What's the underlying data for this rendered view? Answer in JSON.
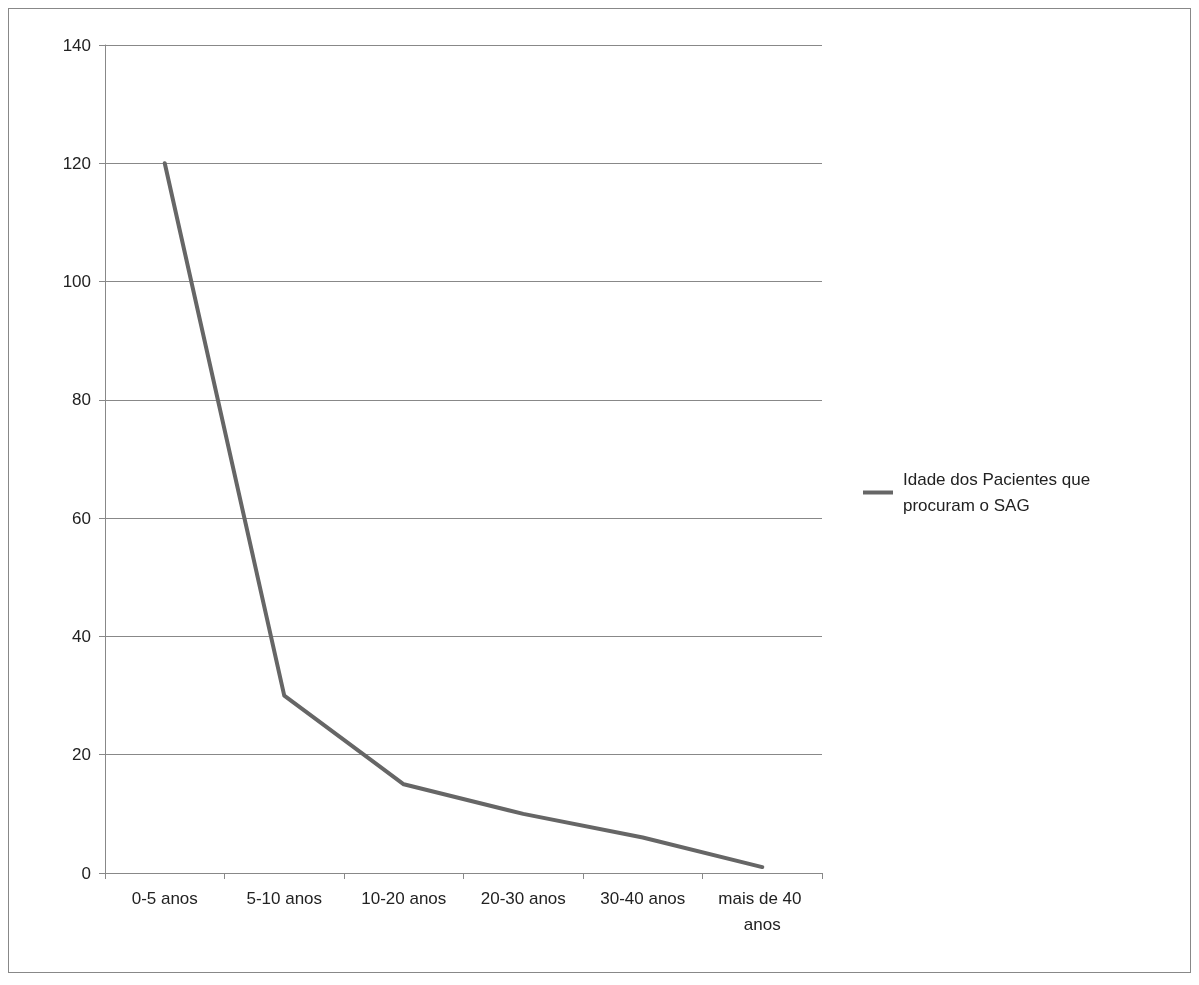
{
  "chart_data": {
    "type": "line",
    "categories": [
      "0-5 anos",
      "5-10 anos",
      "10-20 anos",
      "20-30 anos",
      "30-40 anos",
      "mais de 40 anos"
    ],
    "series": [
      {
        "name": "Idade dos Pacientes que procuram o SAG",
        "color": "#666666",
        "values": [
          120,
          30,
          15,
          10,
          6,
          1
        ]
      }
    ],
    "ylim": [
      0,
      140
    ],
    "yticks": [
      0,
      20,
      40,
      60,
      80,
      100,
      120,
      140
    ],
    "grid": "y",
    "legend": "right",
    "marker": "none"
  }
}
